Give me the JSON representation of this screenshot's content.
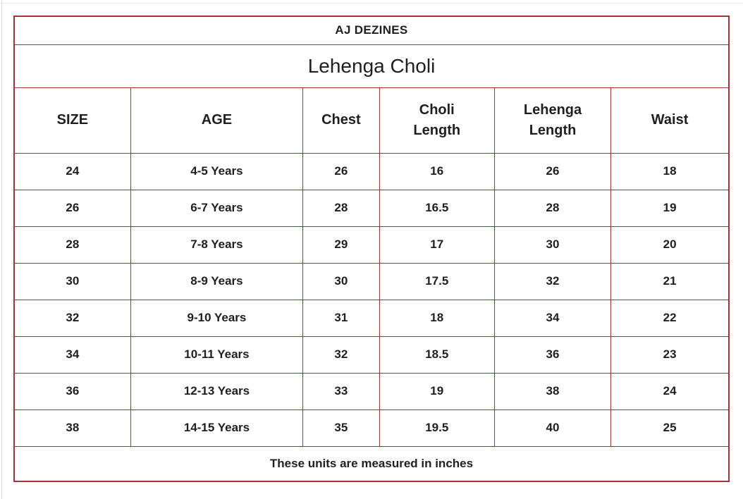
{
  "page": {
    "background": "#ffffff",
    "border_color": "#a03537",
    "text_color": "#1f1f1f"
  },
  "header": {
    "brand": "AJ DEZINES",
    "product": "Lehenga Choli"
  },
  "table": {
    "columns_display": [
      "SIZE",
      "AGE",
      "Chest",
      "Choli\nLength",
      "Lehenga\nLength",
      "Waist"
    ],
    "column_widths_pct": [
      16.3,
      24.1,
      10.7,
      16.1,
      16.3,
      16.5
    ],
    "footer_note": "These units are measured in inches"
  },
  "chart_data": {
    "type": "table",
    "title": "AJ DEZINES",
    "subtitle": "Lehenga Choli",
    "columns": [
      "SIZE",
      "AGE",
      "Chest",
      "Choli Length",
      "Lehenga Length",
      "Waist"
    ],
    "rows": [
      [
        "24",
        "4-5 Years",
        "26",
        "16",
        "26",
        "18"
      ],
      [
        "26",
        "6-7 Years",
        "28",
        "16.5",
        "28",
        "19"
      ],
      [
        "28",
        "7-8 Years",
        "29",
        "17",
        "30",
        "20"
      ],
      [
        "30",
        "8-9 Years",
        "30",
        "17.5",
        "32",
        "21"
      ],
      [
        "32",
        "9-10 Years",
        "31",
        "18",
        "34",
        "22"
      ],
      [
        "34",
        "10-11 Years",
        "32",
        "18.5",
        "36",
        "23"
      ],
      [
        "36",
        "12-13 Years",
        "33",
        "19",
        "38",
        "24"
      ],
      [
        "38",
        "14-15 Years",
        "35",
        "19.5",
        "40",
        "25"
      ]
    ],
    "note": "These units are measured in inches",
    "units": "inches"
  }
}
